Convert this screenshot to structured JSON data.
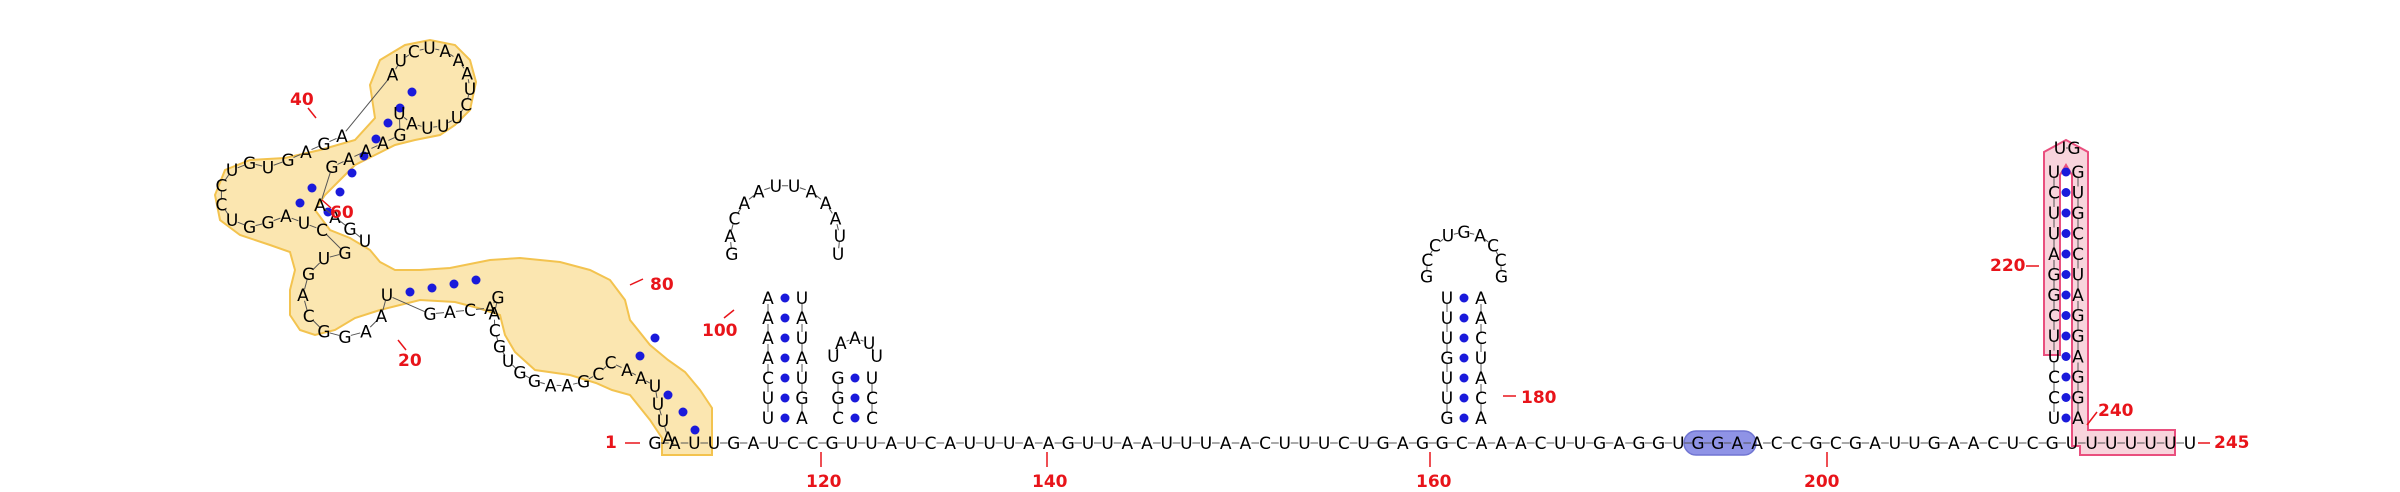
{
  "diagram": {
    "colors": {
      "base": "#000000",
      "pair_dot": "#1a1adb",
      "numbering": "#e8141a",
      "highlight_yellow": "#fbe6b0",
      "highlight_yellow_border": "#f3c34f",
      "highlight_pink": "#f8d4dc",
      "highlight_pink_border": "#e94f7e",
      "highlight_blue": "#8f93e6"
    },
    "position_labels": [
      {
        "id": "n1",
        "text": "1"
      },
      {
        "id": "n20",
        "text": "20"
      },
      {
        "id": "n40",
        "text": "40"
      },
      {
        "id": "n60",
        "text": "60"
      },
      {
        "id": "n80",
        "text": "80"
      },
      {
        "id": "n100",
        "text": "100"
      },
      {
        "id": "n120",
        "text": "120"
      },
      {
        "id": "n140",
        "text": "140"
      },
      {
        "id": "n160",
        "text": "160"
      },
      {
        "id": "n180",
        "text": "180"
      },
      {
        "id": "n200",
        "text": "200"
      },
      {
        "id": "n220",
        "text": "220"
      },
      {
        "id": "n240",
        "text": "240"
      },
      {
        "id": "n245",
        "text": "245"
      }
    ],
    "baseline_sequence": "GAUUGAUCCGUUAUCAUUUAAGUUAAUUUAACUUUCUGAGGCAAACUUGAGGUGGAACCGCGAUUGAACUCGUUUUUUU",
    "stem_100_left": "UUCAAAA",
    "stem_100_right": "AGUAUAU",
    "hairpin_100_loop": "GACAAUUAAAUU",
    "stem_120_left": "CGG",
    "stem_120_right": "CCU",
    "hairpin_120_loop": "UAAUU",
    "stem_160_left": "GUUGUUU",
    "stem_160_right": "ACAUCAA",
    "hairpin_160_loop": "GCCUGACCG",
    "terminator_left": "UCCUUCGGAUUCU",
    "terminator_right": "AGGAGGAUCCGUG",
    "terminator_loop": "UG",
    "upper_domain_sequence": "AUUUAACCGAAGGUGCAGACAGUAAGGCAGUGCUAGGUCCUGUGAGAAUCUAAAUCUUUAUGAAAGAAGU",
    "highlight_blue_sequence": "UGGA"
  }
}
